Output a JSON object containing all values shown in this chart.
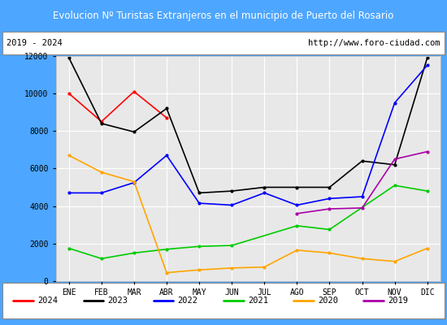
{
  "title": "Evolucion Nº Turistas Extranjeros en el municipio de Puerto del Rosario",
  "subtitle_left": "2019 - 2024",
  "subtitle_right": "http://www.foro-ciudad.com",
  "months": [
    "ENE",
    "FEB",
    "MAR",
    "ABR",
    "MAY",
    "JUN",
    "JUL",
    "AGO",
    "SEP",
    "OCT",
    "NOV",
    "DIC"
  ],
  "series": {
    "2024": [
      10000,
      8500,
      10100,
      8700,
      null,
      null,
      null,
      null,
      null,
      null,
      null,
      null
    ],
    "2023": [
      11900,
      8400,
      7950,
      9200,
      4700,
      4800,
      5000,
      5000,
      5000,
      6400,
      6200,
      11900
    ],
    "2022": [
      4700,
      4700,
      5250,
      6700,
      4150,
      4050,
      4700,
      4050,
      4400,
      4500,
      9500,
      11500
    ],
    "2021": [
      1750,
      1200,
      1500,
      1700,
      1850,
      1900,
      null,
      2950,
      2750,
      null,
      5100,
      4800
    ],
    "2020": [
      6700,
      5800,
      5300,
      450,
      600,
      700,
      750,
      1650,
      1500,
      1200,
      1050,
      1750
    ],
    "2019": [
      null,
      null,
      null,
      null,
      null,
      null,
      null,
      3600,
      3850,
      3900,
      6500,
      6900
    ]
  },
  "colors": {
    "2024": "#ff0000",
    "2023": "#000000",
    "2022": "#0000ff",
    "2021": "#00cc00",
    "2020": "#ffa500",
    "2019": "#aa00aa"
  },
  "ylim": [
    0,
    12000
  ],
  "yticks": [
    0,
    2000,
    4000,
    6000,
    8000,
    10000,
    12000
  ],
  "title_bg_color": "#4da6ff",
  "title_text_color": "#ffffff",
  "plot_bg_color": "#e8e8e8",
  "grid_color": "#ffffff",
  "border_color": "#4da6ff",
  "legend_years": [
    "2024",
    "2023",
    "2022",
    "2021",
    "2020",
    "2019"
  ]
}
